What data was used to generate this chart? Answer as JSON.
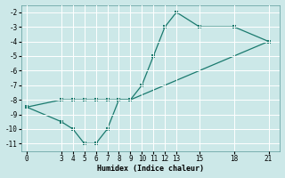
{
  "xlabel": "Humidex (Indice chaleur)",
  "upper_x": [
    0,
    3,
    4,
    5,
    6,
    7,
    8,
    9,
    10,
    11,
    12,
    13,
    15,
    18,
    21
  ],
  "upper_y": [
    -8.5,
    -8.0,
    -8.0,
    -8.0,
    -8.0,
    -8.0,
    -8.0,
    -8.0,
    -7.0,
    -5.0,
    -3.0,
    -2.0,
    -3.0,
    -3.0,
    -4.0
  ],
  "lower_x": [
    0,
    3,
    4,
    5,
    6,
    7,
    8,
    9,
    21
  ],
  "lower_y": [
    -8.5,
    -9.5,
    -10.0,
    -11.0,
    -11.0,
    -10.0,
    -8.0,
    -8.0,
    -4.0
  ],
  "xlim": [
    -0.5,
    22
  ],
  "ylim": [
    -11.5,
    -1.5
  ],
  "xticks": [
    0,
    3,
    4,
    5,
    6,
    7,
    8,
    9,
    10,
    11,
    12,
    13,
    15,
    18,
    21
  ],
  "yticks": [
    -11,
    -10,
    -9,
    -8,
    -7,
    -6,
    -5,
    -4,
    -3,
    -2
  ],
  "line_color": "#1a7a6e",
  "bg_color": "#cce8e8",
  "grid_color": "#ffffff",
  "marker_size": 2.5,
  "font_family": "monospace"
}
